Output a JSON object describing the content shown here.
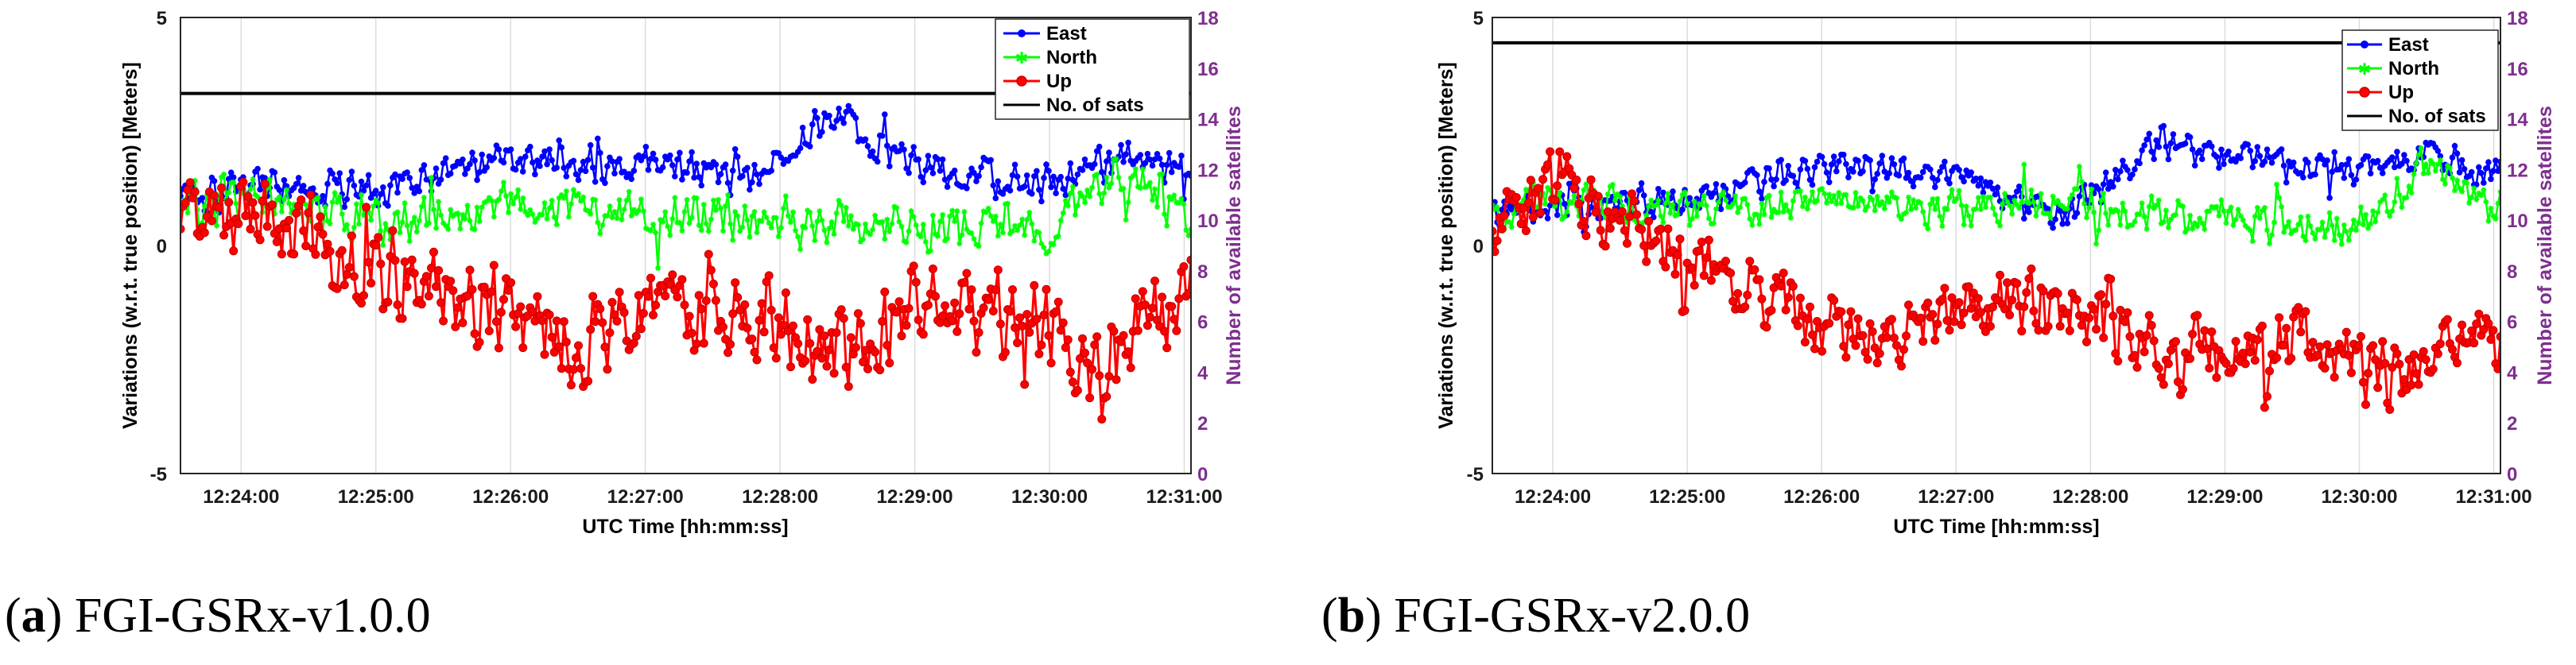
{
  "panels": [
    {
      "caption_letter": "a",
      "caption_text": "FGI-GSRx-v1.0.0",
      "chart_data": {
        "type": "line",
        "xlabel": "UTC Time [hh:mm:ss]",
        "ylabel_left": "Variations (w.r.t. true position) [Meters]",
        "ylabel_right": "Number of available satellites",
        "x_ticks": [
          "12:24:00",
          "12:25:00",
          "12:26:00",
          "12:27:00",
          "12:28:00",
          "12:29:00",
          "12:30:00",
          "12:31:00"
        ],
        "x_range_min": [
          23.55,
          31.05
        ],
        "ylim_left": [
          -5,
          5
        ],
        "yticks_left": [
          "5",
          "0",
          "-5"
        ],
        "ylim_right": [
          0,
          18
        ],
        "yticks_right": [
          "18",
          "16",
          "14",
          "12",
          "10",
          "8",
          "6",
          "4",
          "2",
          "0"
        ],
        "legend": [
          "East",
          "North",
          "Up",
          "No. of sats"
        ],
        "legend_location": "top-right",
        "grid": "vertical",
        "series": [
          {
            "name": "East",
            "color": "#0000ff",
            "marker": "dot",
            "mean": 1.6,
            "amplitude": 0.6,
            "trend_points_min": [
              23.55,
              24.0,
              25.0,
              26.0,
              27.0,
              27.8,
              28.4,
              29.0,
              30.0,
              30.5,
              31.0
            ],
            "trend_values": [
              0.9,
              1.3,
              1.2,
              1.9,
              1.8,
              1.4,
              2.9,
              1.7,
              1.3,
              1.9,
              1.6
            ]
          },
          {
            "name": "North",
            "color": "#00ff00",
            "marker": "star",
            "mean": 0.6,
            "amplitude": 0.7,
            "trend_points_min": [
              23.55,
              24.0,
              25.0,
              26.0,
              27.0,
              28.0,
              29.0,
              30.0,
              30.5,
              31.0
            ],
            "trend_values": [
              0.8,
              1.1,
              0.5,
              0.9,
              0.7,
              0.6,
              0.4,
              0.3,
              1.8,
              0.6
            ]
          },
          {
            "name": "Up",
            "color": "#ff0000",
            "marker": "circle",
            "mean": -1.2,
            "amplitude": 1.3,
            "trend_points_min": [
              23.55,
              24.0,
              25.0,
              26.0,
              26.5,
              27.0,
              28.0,
              28.5,
              29.0,
              30.0,
              30.3,
              31.0
            ],
            "trend_values": [
              0.3,
              0.8,
              -0.6,
              -1.5,
              -2.2,
              -1.3,
              -1.8,
              -2.4,
              -1.3,
              -1.6,
              -2.8,
              -1.0
            ]
          },
          {
            "name": "No. of sats",
            "color": "#000000",
            "marker": "none",
            "axis": "right",
            "x_min": [
              23.55,
              31.05
            ],
            "values": [
              15,
              15
            ]
          }
        ]
      }
    },
    {
      "caption_letter": "b",
      "caption_text": "FGI-GSRx-v2.0.0",
      "chart_data": {
        "type": "line",
        "xlabel": "UTC Time [hh:mm:ss]",
        "ylabel_left": "Variations (w.r.t. true position) [Meters]",
        "ylabel_right": "Number of available satellites",
        "x_ticks": [
          "12:24:00",
          "12:25:00",
          "12:26:00",
          "12:27:00",
          "12:28:00",
          "12:29:00",
          "12:30:00",
          "12:31:00"
        ],
        "x_range_min": [
          23.55,
          31.05
        ],
        "ylim_left": [
          -5,
          5
        ],
        "yticks_left": [
          "5",
          "0",
          "-5"
        ],
        "ylim_right": [
          0,
          18
        ],
        "yticks_right": [
          "18",
          "16",
          "14",
          "12",
          "10",
          "8",
          "6",
          "4",
          "2",
          "0"
        ],
        "legend": [
          "East",
          "North",
          "Up",
          "No. of sats"
        ],
        "legend_location": "top-right",
        "grid": "vertical",
        "series": [
          {
            "name": "East",
            "color": "#0000ff",
            "marker": "dot",
            "mean": 1.5,
            "amplitude": 0.5,
            "trend_points_min": [
              23.55,
              24.0,
              25.0,
              26.0,
              27.0,
              27.8,
              28.5,
              29.0,
              30.0,
              30.5,
              31.0
            ],
            "trend_values": [
              0.6,
              0.9,
              1.0,
              1.7,
              1.6,
              0.6,
              2.2,
              1.9,
              1.7,
              2.0,
              1.6
            ]
          },
          {
            "name": "North",
            "color": "#00ff00",
            "marker": "star",
            "mean": 0.6,
            "amplitude": 0.6,
            "trend_points_min": [
              23.55,
              24.0,
              25.0,
              26.0,
              27.0,
              28.0,
              29.0,
              30.0,
              30.5,
              31.0
            ],
            "trend_values": [
              0.6,
              1.1,
              0.7,
              1.0,
              0.8,
              0.9,
              0.5,
              0.4,
              1.8,
              0.8
            ]
          },
          {
            "name": "Up",
            "color": "#ff0000",
            "marker": "circle",
            "mean": -1.3,
            "amplitude": 1.1,
            "trend_points_min": [
              23.55,
              24.0,
              25.0,
              26.0,
              26.5,
              27.0,
              28.0,
              28.5,
              29.0,
              29.6,
              30.2,
              31.0
            ],
            "trend_values": [
              0.3,
              1.3,
              -0.3,
              -1.6,
              -2.2,
              -1.2,
              -1.3,
              -2.4,
              -2.3,
              -2.0,
              -2.9,
              -2.2
            ]
          },
          {
            "name": "No. of sats",
            "color": "#000000",
            "marker": "none",
            "axis": "right",
            "x_min": [
              23.55,
              31.05
            ],
            "values": [
              17,
              17
            ]
          }
        ]
      }
    }
  ]
}
